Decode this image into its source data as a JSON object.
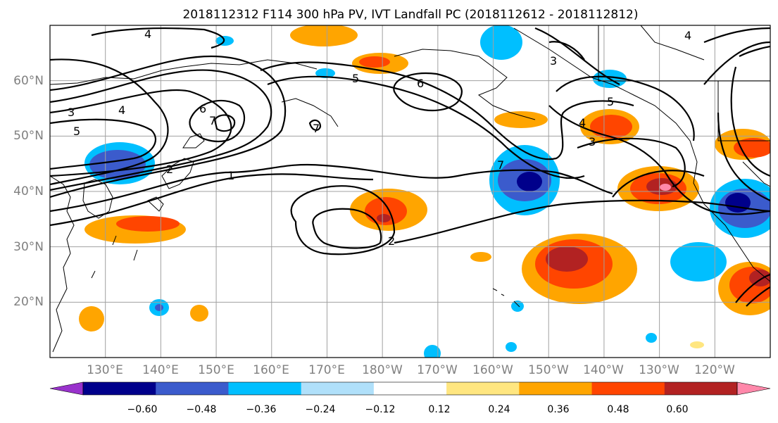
{
  "figure": {
    "title": "2018112312 F114 300 hPa PV, IVT Landfall PC (2018112612 - 2018112812)"
  },
  "map": {
    "projection": "PlateCarree",
    "lon_range_east": [
      120,
      250
    ],
    "lat_range": [
      10,
      70
    ],
    "grid": true,
    "lat_ticks": [
      "60°N",
      "50°N",
      "40°N",
      "30°N",
      "20°N"
    ],
    "lon_ticks": [
      "130°E",
      "140°E",
      "150°E",
      "160°E",
      "170°E",
      "180°W",
      "170°W",
      "160°W",
      "150°W",
      "140°W",
      "130°W",
      "120°W"
    ]
  },
  "contours": {
    "field": "300 hPa PV",
    "line_color": "#000000",
    "labels": [
      "4",
      "3",
      "5",
      "4",
      "6",
      "7",
      "5",
      "6",
      "7",
      "3",
      "5",
      "4",
      "3",
      "4",
      "2",
      "1",
      "2",
      "7"
    ]
  },
  "shading": {
    "field": "IVT Landfall PC",
    "blobs_sign": [
      "negative",
      "negative",
      "positive",
      "positive",
      "positive",
      "negative",
      "positive",
      "positive",
      "negative",
      "positive",
      "negative",
      "positive",
      "positive"
    ]
  },
  "colorbar": {
    "levels": [
      "−0.60",
      "−0.48",
      "−0.36",
      "−0.24",
      "−0.12",
      "0.12",
      "0.24",
      "0.36",
      "0.48",
      "0.60"
    ],
    "colors": [
      "#9932cc",
      "#00008b",
      "#3b5bcc",
      "#00bfff",
      "#b0e0fa",
      "#ffffff",
      "#ffe680",
      "#ffa500",
      "#ff4500",
      "#b22222",
      "#ff88aa"
    ],
    "extend": "both"
  }
}
